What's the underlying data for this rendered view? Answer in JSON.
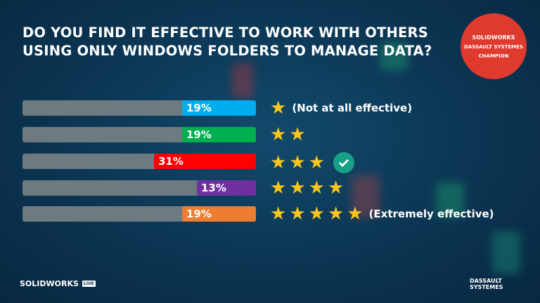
{
  "title_lines": [
    "DO YOU FIND IT EFFECTIVE TO WORK WITH OTHERS",
    "USING ONLY WINDOWS FOLDERS TO MANAGE DATA?"
  ],
  "chart_data": {
    "type": "bar",
    "orientation": "horizontal",
    "categories": [
      "1 star",
      "2 stars",
      "3 stars",
      "4 stars",
      "5 stars"
    ],
    "values": [
      19,
      19,
      31,
      13,
      19
    ],
    "labels": [
      "19%",
      "19%",
      "31%",
      "13%",
      "19%"
    ],
    "stars": [
      1,
      2,
      3,
      4,
      5
    ],
    "annotations": [
      "(Not at all effective)",
      "",
      "",
      "",
      "(Extremely effective)"
    ],
    "colors": [
      "#00aeef",
      "#00b050",
      "#ff0000",
      "#7030a0",
      "#ed7d31"
    ],
    "track_color": "#6d7a80",
    "correct_index": 2
  },
  "badge": {
    "brand": "SOLIDWORKS",
    "company": "DASSAULT SYSTEMES",
    "text": "CHAMPION",
    "color": "#e03a2f"
  },
  "footer": {
    "left": "SOLIDWORKS",
    "left_tag": "LIVE",
    "right": "DASSAULT SYSTEMES"
  },
  "icons": {
    "star": "star-icon",
    "check": "check-circle-icon"
  }
}
